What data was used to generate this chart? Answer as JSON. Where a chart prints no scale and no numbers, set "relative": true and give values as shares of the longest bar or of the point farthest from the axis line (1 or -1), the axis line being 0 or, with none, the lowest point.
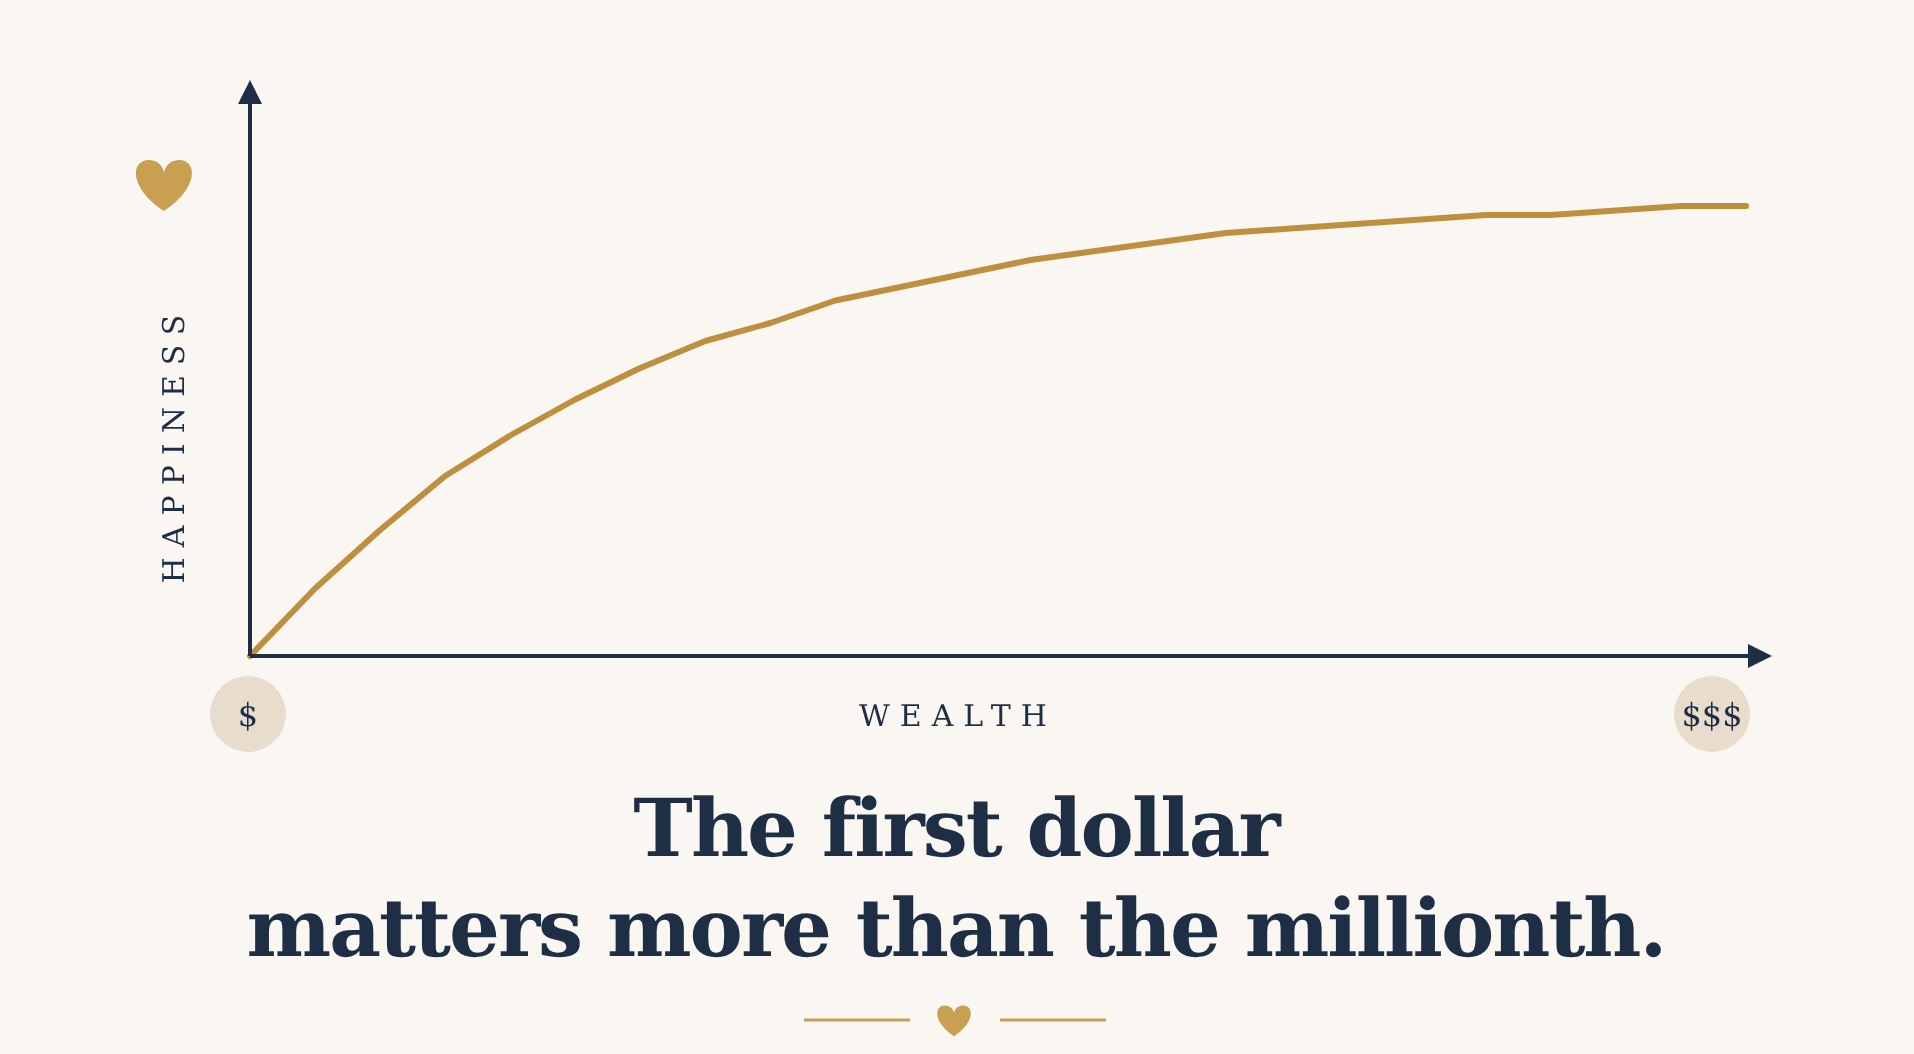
{
  "chart_data": {
    "type": "line",
    "relative": true,
    "title": "The first dollar\nmatters more than the millionth.",
    "xlabel": "WEALTH",
    "ylabel": "HAPPINESS",
    "categories": [
      null,
      null,
      null,
      null,
      null,
      null,
      null,
      null,
      null,
      null,
      null,
      null,
      null,
      null,
      null,
      null,
      null,
      null,
      null,
      null,
      null,
      null,
      null,
      null
    ],
    "series": [
      {
        "color": "#bf8f40",
        "values": [
          0,
          0.15,
          0.28,
          0.4,
          0.49,
          0.57,
          0.64,
          0.7,
          0.74,
          0.79,
          0.82,
          0.85,
          0.88,
          0.9,
          0.92,
          0.94,
          0.95,
          0.96,
          0.97,
          0.98,
          0.98,
          0.99,
          1.0,
          1.0
        ]
      }
    ],
    "annotations": [
      "$",
      "$$$"
    ]
  }
}
